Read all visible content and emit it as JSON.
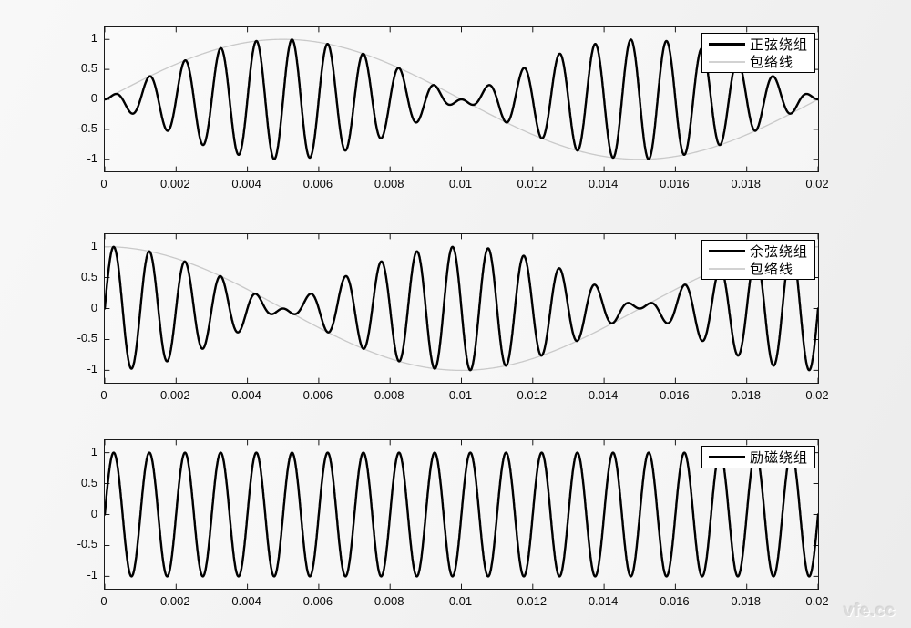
{
  "figure": {
    "watermark": "vfe.cc",
    "axis_color": "#1a1a1a",
    "signal_color": "#000000",
    "envelope_color": "#c9c9c9",
    "legend_bg": "#ffffff"
  },
  "chart_data": [
    {
      "type": "line",
      "title": "",
      "xlabel": "",
      "ylabel": "",
      "xlim": [
        0,
        0.02
      ],
      "ylim": [
        -1.2,
        1.2
      ],
      "grid": false,
      "legend_position": "top-right",
      "xticks": [
        0,
        0.002,
        0.004,
        0.006,
        0.008,
        0.01,
        0.012,
        0.014,
        0.016,
        0.018,
        0.02
      ],
      "xtick_labels": [
        "0",
        "0.002",
        "0.004",
        "0.006",
        "0.008",
        "0.01",
        "0.012",
        "0.014",
        "0.016",
        "0.018",
        "0.02"
      ],
      "yticks": [
        1,
        0.5,
        0,
        -0.5,
        -1
      ],
      "ytick_labels": [
        "1",
        "0.5",
        "0",
        "-0.5",
        "-1"
      ],
      "legend": [
        {
          "label": "正弦绕组",
          "color": "#000000",
          "line_width": 3
        },
        {
          "label": "包络线",
          "color": "#d2d2d2",
          "line_width": 2
        }
      ],
      "series": [
        {
          "name": "正弦绕组",
          "kind": "am_signal",
          "formula": "sin(2*pi*50*t)*sin(2*pi*1000*t)",
          "envelope_fn": "sin",
          "envelope_hz": 50,
          "carrier_fn": "sin",
          "carrier_hz": 1000,
          "amplitude": 1,
          "color": "#000000",
          "width": 2.4
        },
        {
          "name": "包络线",
          "kind": "envelope",
          "formula": "sin(2*pi*50*t)",
          "fn": "sin",
          "freq_hz": 50,
          "amplitude": 1,
          "color": "#c9c9c9",
          "width": 1.3
        }
      ]
    },
    {
      "type": "line",
      "title": "",
      "xlabel": "",
      "ylabel": "",
      "xlim": [
        0,
        0.02
      ],
      "ylim": [
        -1.2,
        1.2
      ],
      "grid": false,
      "legend_position": "top-right",
      "xticks": [
        0,
        0.002,
        0.004,
        0.006,
        0.008,
        0.01,
        0.012,
        0.014,
        0.016,
        0.018,
        0.02
      ],
      "xtick_labels": [
        "0",
        "0.002",
        "0.004",
        "0.006",
        "0.008",
        "0.01",
        "0.012",
        "0.014",
        "0.016",
        "0.018",
        "0.02"
      ],
      "yticks": [
        1,
        0.5,
        0,
        -0.5,
        -1
      ],
      "ytick_labels": [
        "1",
        "0.5",
        "0",
        "-0.5",
        "-1"
      ],
      "legend": [
        {
          "label": "余弦绕组",
          "color": "#000000",
          "line_width": 3
        },
        {
          "label": "包络线",
          "color": "#d2d2d2",
          "line_width": 2
        }
      ],
      "series": [
        {
          "name": "余弦绕组",
          "kind": "am_signal",
          "formula": "cos(2*pi*50*t)*sin(2*pi*1000*t)",
          "envelope_fn": "cos",
          "envelope_hz": 50,
          "carrier_fn": "sin",
          "carrier_hz": 1000,
          "amplitude": 1,
          "color": "#000000",
          "width": 2.4
        },
        {
          "name": "包络线",
          "kind": "envelope",
          "formula": "cos(2*pi*50*t)",
          "fn": "cos",
          "freq_hz": 50,
          "amplitude": 1,
          "color": "#c9c9c9",
          "width": 1.3
        }
      ]
    },
    {
      "type": "line",
      "title": "",
      "xlabel": "",
      "ylabel": "",
      "xlim": [
        0,
        0.02
      ],
      "ylim": [
        -1.2,
        1.2
      ],
      "grid": false,
      "legend_position": "top-right",
      "xticks": [
        0,
        0.002,
        0.004,
        0.006,
        0.008,
        0.01,
        0.012,
        0.014,
        0.016,
        0.018,
        0.02
      ],
      "xtick_labels": [
        "0",
        "0.002",
        "0.004",
        "0.006",
        "0.008",
        "0.01",
        "0.012",
        "0.014",
        "0.016",
        "0.018",
        "0.02"
      ],
      "yticks": [
        1,
        0.5,
        0,
        -0.5,
        -1
      ],
      "ytick_labels": [
        "1",
        "0.5",
        "0",
        "-0.5",
        "-1"
      ],
      "legend": [
        {
          "label": "励磁绕组",
          "color": "#000000",
          "line_width": 3
        }
      ],
      "series": [
        {
          "name": "励磁绕组",
          "kind": "carrier",
          "formula": "sin(2*pi*1000*t)",
          "fn": "sin",
          "freq_hz": 1000,
          "amplitude": 1,
          "color": "#000000",
          "width": 2.4
        }
      ]
    }
  ]
}
